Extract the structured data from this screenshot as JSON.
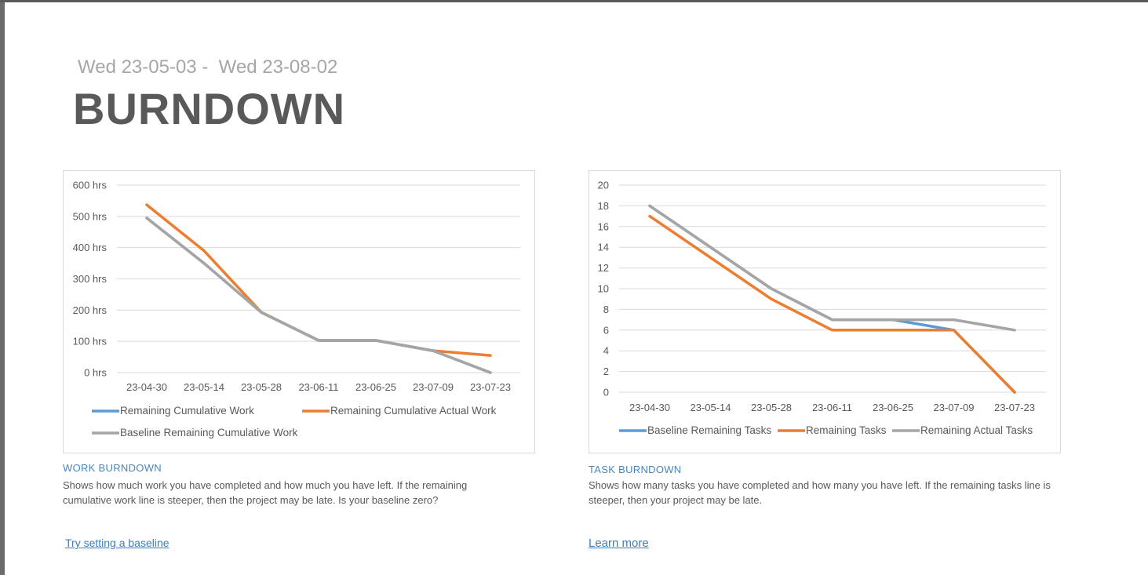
{
  "header": {
    "date_start": "Wed 23-05-03",
    "date_separator": " - ",
    "date_end": "Wed 23-08-02",
    "title": "BURNDOWN"
  },
  "colors": {
    "blue": "#5b9bd5",
    "orange": "#ed7d31",
    "gray": "#a5a5a5",
    "grid": "#d9d9d9",
    "axis_text": "#595959"
  },
  "chart_data": [
    {
      "type": "line",
      "id": "work",
      "title": "",
      "xlabel": "",
      "ylabel": "",
      "categories": [
        "23-04-30",
        "23-05-14",
        "23-05-28",
        "23-06-11",
        "23-06-25",
        "23-07-09",
        "23-07-23"
      ],
      "y_ticks": [
        0,
        100,
        200,
        300,
        400,
        500,
        600
      ],
      "y_tick_labels": [
        "0 hrs",
        "100 hrs",
        "200 hrs",
        "300 hrs",
        "400 hrs",
        "500 hrs",
        "600 hrs"
      ],
      "ylim": [
        0,
        600
      ],
      "grid": true,
      "legend_position": "bottom",
      "series": [
        {
          "name": "Remaining Cumulative Work",
          "color": "#5b9bd5",
          "values": [
            495,
            350,
            193,
            103,
            103,
            70,
            0
          ]
        },
        {
          "name": "Remaining Cumulative Actual Work",
          "color": "#ed7d31",
          "values": [
            537,
            390,
            193,
            103,
            103,
            70,
            55
          ]
        },
        {
          "name": "Baseline Remaining Cumulative Work",
          "color": "#a5a5a5",
          "values": [
            495,
            350,
            193,
            103,
            103,
            70,
            0
          ]
        }
      ]
    },
    {
      "type": "line",
      "id": "task",
      "title": "",
      "xlabel": "",
      "ylabel": "",
      "categories": [
        "23-04-30",
        "23-05-14",
        "23-05-28",
        "23-06-11",
        "23-06-25",
        "23-07-09",
        "23-07-23"
      ],
      "y_ticks": [
        0,
        2,
        4,
        6,
        8,
        10,
        12,
        14,
        16,
        18,
        20
      ],
      "y_tick_labels": [
        "0",
        "2",
        "4",
        "6",
        "8",
        "10",
        "12",
        "14",
        "16",
        "18",
        "20"
      ],
      "ylim": [
        0,
        20
      ],
      "grid": true,
      "legend_position": "bottom",
      "series": [
        {
          "name": "Baseline Remaining Tasks",
          "color": "#5b9bd5",
          "values": [
            18,
            14,
            10,
            7,
            7,
            6,
            0
          ]
        },
        {
          "name": "Remaining Tasks",
          "color": "#ed7d31",
          "values": [
            17,
            13,
            9,
            6,
            6,
            6,
            0
          ]
        },
        {
          "name": "Remaining Actual Tasks",
          "color": "#a5a5a5",
          "values": [
            18,
            14,
            10,
            7,
            7,
            7,
            6
          ]
        }
      ]
    }
  ],
  "work_section": {
    "title": "WORK BURNDOWN",
    "description": "Shows how much work you have completed and how much you have left. If the remaining cumulative work line is steeper, then the project may be late. Is your baseline zero?",
    "link": "Try setting a baseline"
  },
  "task_section": {
    "title": "TASK BURNDOWN",
    "description": "Shows how many tasks you have completed and how many you have left. If the remaining tasks line is steeper, then your project may be late.",
    "link": "Learn more"
  }
}
